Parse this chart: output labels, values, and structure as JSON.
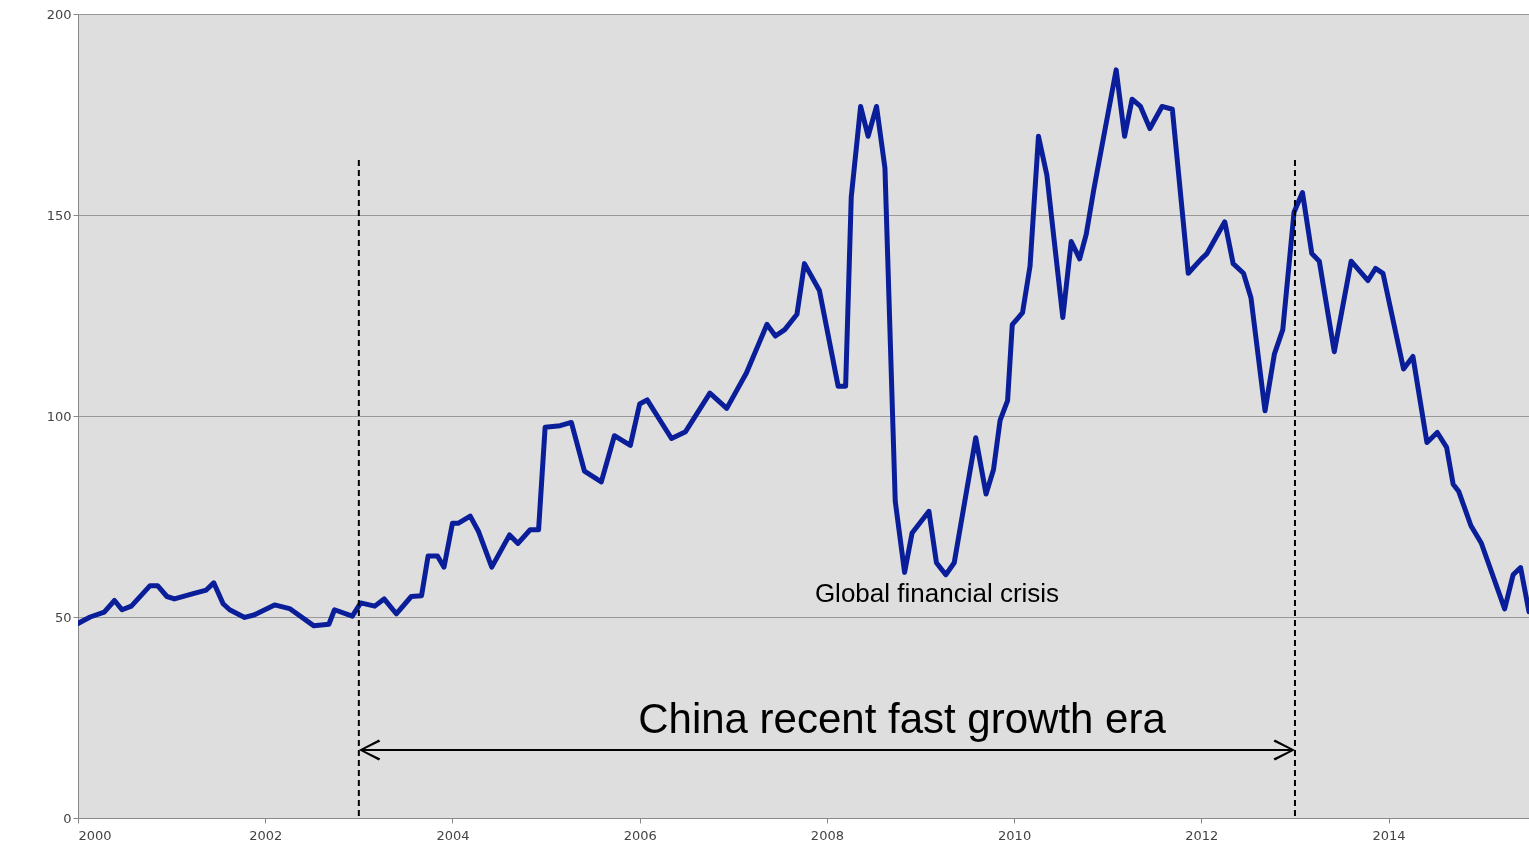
{
  "chart_data": {
    "type": "line",
    "x": [
      2000.0,
      2000.13,
      2000.28,
      2000.39,
      2000.47,
      2000.57,
      2000.77,
      2000.85,
      2000.95,
      2001.03,
      2001.24,
      2001.37,
      2001.45,
      2001.55,
      2001.62,
      2001.78,
      2001.88,
      2002.1,
      2002.26,
      2002.52,
      2002.68,
      2002.74,
      2002.93,
      2003.02,
      2003.17,
      2003.27,
      2003.4,
      2003.56,
      2003.67,
      2003.74,
      2003.84,
      2003.91,
      2004.0,
      2004.06,
      2004.19,
      2004.28,
      2004.42,
      2004.61,
      2004.7,
      2004.83,
      2004.92,
      2004.99,
      2005.15,
      2005.27,
      2005.41,
      2005.59,
      2005.73,
      2005.9,
      2006.0,
      2006.08,
      2006.34,
      2006.49,
      2006.75,
      2006.93,
      2007.14,
      2007.36,
      2007.45,
      2007.55,
      2007.68,
      2007.76,
      2007.92,
      2008.12,
      2008.2,
      2008.26,
      2008.36,
      2008.44,
      2008.53,
      2008.62,
      2008.73,
      2008.83,
      2008.91,
      2009.09,
      2009.17,
      2009.27,
      2009.36,
      2009.59,
      2009.7,
      2009.78,
      2009.85,
      2009.93,
      2009.98,
      2010.09,
      2010.17,
      2010.26,
      2010.35,
      2010.52,
      2010.61,
      2010.7,
      2010.77,
      2010.85,
      2011.09,
      2011.18,
      2011.26,
      2011.35,
      2011.45,
      2011.58,
      2011.69,
      2011.86,
      2012.0,
      2012.06,
      2012.25,
      2012.34,
      2012.45,
      2012.53,
      2012.68,
      2012.78,
      2012.87,
      2012.99,
      2013.08,
      2013.18,
      2013.26,
      2013.42,
      2013.6,
      2013.78,
      2013.86,
      2013.94,
      2014.16,
      2014.26,
      2014.41,
      2014.52,
      2014.62,
      2014.69,
      2014.75,
      2014.88,
      2014.99,
      2015.24,
      2015.33,
      2015.41,
      2015.5
    ],
    "series": [
      {
        "color": "#0a1e9a",
        "values": [
          48.4,
          50,
          51.2,
          54.1,
          51.8,
          52.7,
          57.8,
          57.8,
          55.1,
          54.5,
          55.9,
          56.7,
          58.5,
          53.3,
          51.8,
          49.9,
          50.5,
          53,
          52.1,
          47.8,
          48.2,
          51.8,
          50.2,
          53.5,
          52.7,
          54.5,
          50.8,
          55.1,
          55.3,
          65.2,
          65.2,
          62.4,
          73.3,
          73.3,
          75.1,
          71.2,
          62.4,
          70.4,
          68.3,
          71.7,
          71.7,
          97.2,
          97.6,
          98.4,
          86.3,
          83.6,
          95.1,
          92.7,
          103,
          104,
          94.4,
          96.1,
          105.7,
          101.9,
          110.7,
          122.8,
          119.9,
          121.5,
          125.3,
          137.9,
          131.2,
          107.4,
          107.4,
          154.4,
          177,
          169.6,
          177,
          161.7,
          78.8,
          61.1,
          70.9,
          76.3,
          63.5,
          60.5,
          63.5,
          94.6,
          80.6,
          86.7,
          98.9,
          103.8,
          122.7,
          125.7,
          137.3,
          169.6,
          159.9,
          124.5,
          143.4,
          139.1,
          145.2,
          156.2,
          186.1,
          169.6,
          178.8,
          177,
          171.5,
          177,
          176.3,
          135.5,
          139.1,
          140.4,
          148.3,
          137.9,
          135.5,
          129.4,
          101.3,
          115.4,
          121.5,
          150.7,
          155.6,
          140.4,
          138.5,
          116,
          138.5,
          133.7,
          136.7,
          135.5,
          111.7,
          114.8,
          93.4,
          95.9,
          92.2,
          83,
          81.2,
          72.7,
          68.4,
          52,
          60.5,
          62.3,
          51.3
        ]
      }
    ],
    "xlim": [
      2000,
      2015.5
    ],
    "xticks": [
      2000,
      2002,
      2004,
      2006,
      2008,
      2010,
      2012,
      2014
    ],
    "ylim": [
      0,
      200
    ],
    "yticks": [
      0,
      50,
      100,
      150,
      200
    ],
    "grid": "y",
    "ref_lines": [
      {
        "axis": "x",
        "value": 2003,
        "color": "#000000",
        "line_style": "dashed"
      },
      {
        "axis": "x",
        "value": 2013,
        "color": "#000000",
        "line_style": "dashed"
      }
    ],
    "annotations": [
      "Global financial crisis",
      "China recent fast growth era"
    ]
  }
}
